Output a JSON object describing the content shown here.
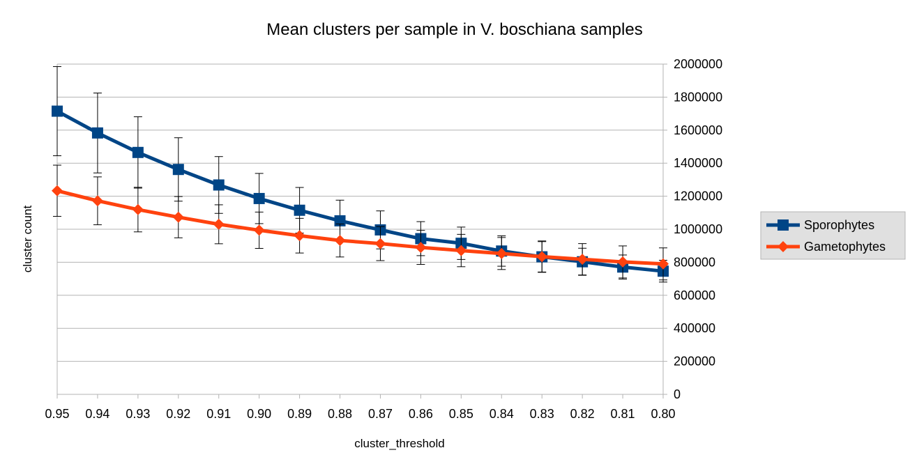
{
  "chart_data": {
    "type": "line",
    "title": "Mean clusters per sample in V. boschiana samples",
    "xlabel": "cluster_threshold",
    "ylabel": "cluster count",
    "x": [
      "0.95",
      "0.94",
      "0.93",
      "0.92",
      "0.91",
      "0.90",
      "0.89",
      "0.88",
      "0.87",
      "0.86",
      "0.85",
      "0.84",
      "0.83",
      "0.82",
      "0.81",
      "0.80"
    ],
    "ylim": [
      0,
      2000000
    ],
    "yticks": [
      0,
      200000,
      400000,
      600000,
      800000,
      1000000,
      1200000,
      1400000,
      1600000,
      1800000,
      2000000
    ],
    "y_axis_side": "right",
    "grid": "horizontal",
    "legend_position": "right",
    "series": [
      {
        "name": "Sporophytes",
        "color": "#004586",
        "marker": "square",
        "values": [
          1715000,
          1583000,
          1465000,
          1362000,
          1268000,
          1186000,
          1115000,
          1051000,
          996000,
          943000,
          915000,
          868000,
          833000,
          803000,
          771000,
          746000
        ],
        "error": [
          270000,
          242000,
          216000,
          192000,
          172000,
          152000,
          138000,
          125000,
          115000,
          103000,
          98000,
          92000,
          92000,
          82000,
          73000,
          66000
        ]
      },
      {
        "name": "Gametophytes",
        "color": "#ff420e",
        "marker": "diamond",
        "values": [
          1233000,
          1172000,
          1119000,
          1073000,
          1030000,
          994000,
          961000,
          932000,
          913000,
          890000,
          871000,
          853000,
          834000,
          818000,
          802000,
          790000
        ],
        "error": [
          155000,
          145000,
          135000,
          125000,
          118000,
          110000,
          105000,
          100000,
          103000,
          103000,
          98000,
          97000,
          95000,
          95000,
          97000,
          97000
        ]
      }
    ]
  }
}
